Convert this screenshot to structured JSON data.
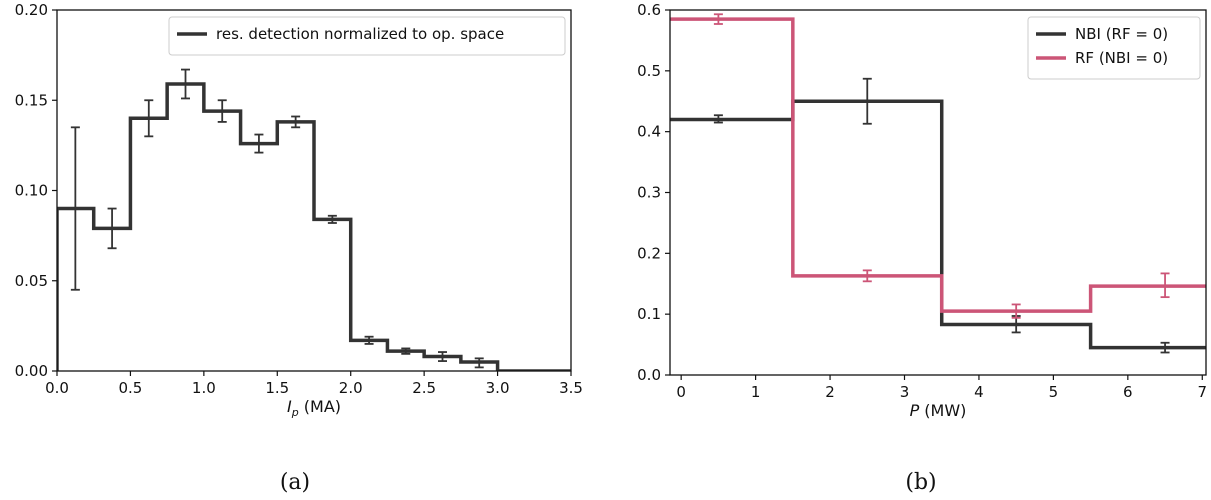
{
  "chart_data": [
    {
      "type": "line",
      "step": true,
      "caption": "(a)",
      "xlabel_italic": "I",
      "xlabel_sub": "p",
      "xlabel_unit": " (MA)",
      "xlim": [
        0,
        3.5
      ],
      "ylim": [
        0,
        0.2
      ],
      "xticks": [
        "0.0",
        "0.5",
        "1.0",
        "1.5",
        "2.0",
        "2.5",
        "3.0",
        "3.5"
      ],
      "yticks": [
        "0.00",
        "0.05",
        "0.10",
        "0.15",
        "0.20"
      ],
      "legend_position": "top-right",
      "grid": false,
      "bin_edges": [
        0,
        0.25,
        0.5,
        0.75,
        1.0,
        1.25,
        1.5,
        1.75,
        2.0,
        2.25,
        2.5,
        2.75,
        3.0,
        3.25,
        3.5
      ],
      "series": [
        {
          "name": "res. detection normalized to op. space",
          "color": "#333333",
          "values": [
            0.09,
            0.079,
            0.14,
            0.159,
            0.144,
            0.126,
            0.138,
            0.084,
            0.017,
            0.011,
            0.008,
            0.005,
            0.0,
            0.0
          ],
          "err_x": [
            0.125,
            0.375,
            0.625,
            0.875,
            1.125,
            1.375,
            1.625,
            1.875,
            2.125,
            2.375,
            2.625,
            2.875
          ],
          "err_center": [
            0.09,
            0.079,
            0.14,
            0.159,
            0.144,
            0.126,
            0.138,
            0.084,
            0.017,
            0.011,
            0.008,
            0.0045
          ],
          "err_low": [
            0.045,
            0.068,
            0.13,
            0.151,
            0.138,
            0.121,
            0.135,
            0.082,
            0.015,
            0.0095,
            0.0055,
            0.002
          ],
          "err_high": [
            0.135,
            0.09,
            0.15,
            0.167,
            0.15,
            0.131,
            0.141,
            0.086,
            0.019,
            0.0125,
            0.0105,
            0.007
          ]
        }
      ]
    },
    {
      "type": "line",
      "step": true,
      "caption": "(b)",
      "xlabel_italic": "P",
      "xlabel_unit": " (MW)",
      "xlim": [
        -0.15,
        7.05
      ],
      "ylim": [
        0,
        0.6
      ],
      "xticks": [
        "0",
        "1",
        "2",
        "3",
        "4",
        "5",
        "6",
        "7"
      ],
      "yticks": [
        "0.0",
        "0.1",
        "0.2",
        "0.3",
        "0.4",
        "0.5",
        "0.6"
      ],
      "legend_position": "top-right",
      "grid": false,
      "bin_edges": [
        -0.5,
        1.5,
        3.5,
        5.5,
        7.5
      ],
      "series": [
        {
          "name": "NBI (RF = 0)",
          "color": "#333333",
          "values": [
            0.42,
            0.45,
            0.083,
            0.045
          ],
          "err_x": [
            0.5,
            2.5,
            4.5,
            6.5
          ],
          "err_center": [
            0.42,
            0.45,
            0.083,
            0.045
          ],
          "err_low": [
            0.415,
            0.413,
            0.07,
            0.037
          ],
          "err_high": [
            0.427,
            0.487,
            0.097,
            0.053
          ]
        },
        {
          "name": "RF (NBI = 0)",
          "color": "#cc5577",
          "values": [
            0.585,
            0.163,
            0.105,
            0.146
          ],
          "err_x": [
            0.5,
            2.5,
            4.5,
            6.5
          ],
          "err_center": [
            0.585,
            0.163,
            0.105,
            0.146
          ],
          "err_low": [
            0.577,
            0.154,
            0.094,
            0.128
          ],
          "err_high": [
            0.593,
            0.172,
            0.116,
            0.167
          ]
        }
      ]
    }
  ]
}
